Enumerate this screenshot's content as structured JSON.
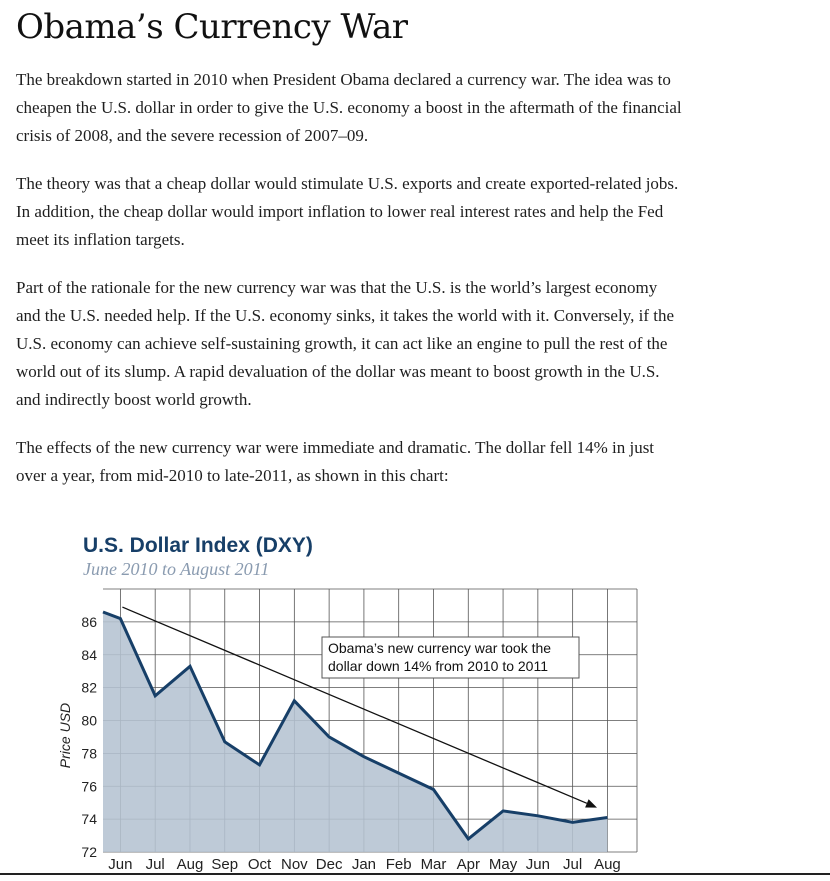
{
  "article": {
    "title": "Obama’s Currency War",
    "paragraphs": [
      "The breakdown started in 2010 when President Obama declared a currency war. The idea was to cheapen the U.S. dollar in order to give the U.S. economy a boost in the aftermath of the financial crisis of 2008, and the severe recession of 2007–09.",
      "The theory was that a cheap dollar would stimulate U.S. exports and create exported-related jobs. In addition, the cheap dollar would import inflation to lower real interest rates and help the Fed meet its inflation targets.",
      "Part of the rationale for the new currency war was that the U.S. is the world’s largest economy and the U.S. needed help. If the U.S. economy sinks, it takes the world with it. Conversely, if the U.S. economy can achieve self-sustaining growth, it can act like an engine to pull the rest of the world out of its slump. A rapid devaluation of the dollar was meant to boost growth in the U.S. and indirectly boost world growth.",
      "The effects of the new currency war were immediate and dramatic. The dollar fell 14% in just over a year, from mid-2010 to late-2011, as shown in this chart:"
    ]
  },
  "chart_data": {
    "type": "area",
    "title": "U.S. Dollar Index (DXY)",
    "subtitle": "June 2010 to August 2011",
    "ylabel": "Price USD",
    "xlabel": "",
    "categories": [
      "Jun",
      "Jul",
      "Aug",
      "Sep",
      "Oct",
      "Nov",
      "Dec",
      "Jan",
      "Feb",
      "Mar",
      "Apr",
      "May",
      "Jun",
      "Jul",
      "Aug"
    ],
    "x": [
      -0.5,
      0,
      1,
      2,
      3,
      4,
      5,
      6,
      7,
      8,
      9,
      10,
      11,
      12,
      13,
      14
    ],
    "values": [
      86.6,
      86.2,
      81.5,
      83.3,
      78.7,
      77.3,
      81.2,
      79.0,
      77.8,
      76.8,
      75.8,
      72.8,
      74.5,
      74.2,
      73.8,
      74.1
    ],
    "ylim": [
      72,
      88
    ],
    "yticks": [
      72,
      74,
      76,
      78,
      80,
      82,
      84,
      86
    ],
    "grid": true,
    "fill_color": "#b5c3d1",
    "line_color": "#173f68",
    "title_color": "#173f68",
    "subtitle_color": "#8a9bb0",
    "annotation": {
      "text_line1": "Obama’s new currency war took the",
      "text_line2": "dollar down 14% from 2010 to 2011",
      "arrow_start": [
        0,
        86.9
      ],
      "arrow_end": [
        13.7,
        74.7
      ]
    }
  }
}
